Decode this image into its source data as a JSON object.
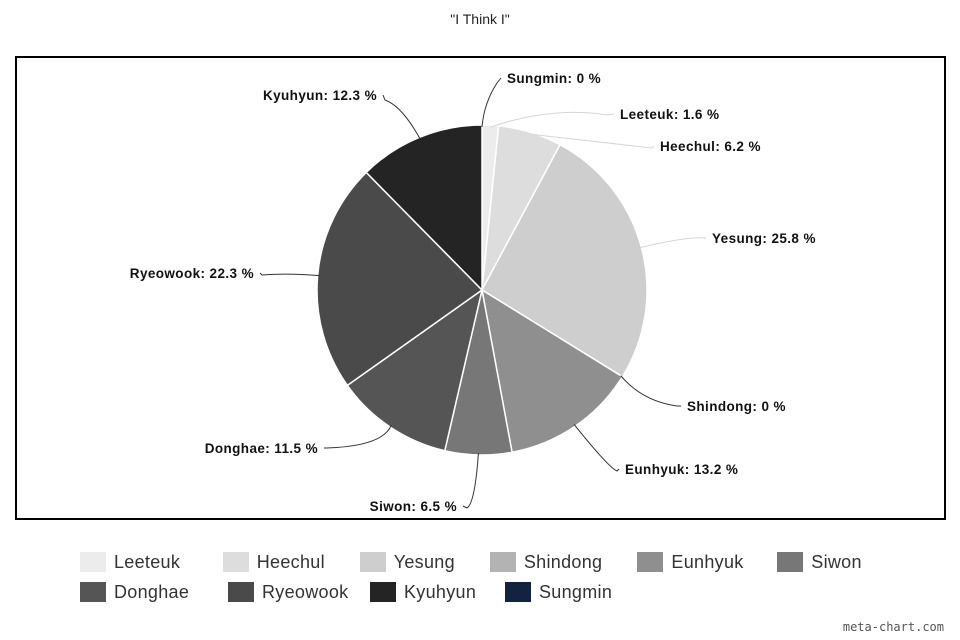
{
  "chart_data": {
    "type": "pie",
    "title": "\"I Think I\"",
    "label_format": "{name}: {value} %",
    "legend_position": "bottom",
    "slices": [
      {
        "name": "Leeteuk",
        "value": 1.6,
        "color": "#ececec"
      },
      {
        "name": "Heechul",
        "value": 6.2,
        "color": "#dddddd"
      },
      {
        "name": "Yesung",
        "value": 25.8,
        "color": "#cecece"
      },
      {
        "name": "Shindong",
        "value": 0,
        "color": "#b3b3b3"
      },
      {
        "name": "Eunhyuk",
        "value": 13.2,
        "color": "#8f8f8f"
      },
      {
        "name": "Siwon",
        "value": 6.5,
        "color": "#777777"
      },
      {
        "name": "Donghae",
        "value": 11.5,
        "color": "#555555"
      },
      {
        "name": "Ryeowook",
        "value": 22.3,
        "color": "#4a4a4a"
      },
      {
        "name": "Kyuhyun",
        "value": 12.3,
        "color": "#242424"
      },
      {
        "name": "Sungmin",
        "value": 0,
        "color": "#13233f"
      }
    ]
  },
  "footer": {
    "credit": "meta-chart.com"
  }
}
